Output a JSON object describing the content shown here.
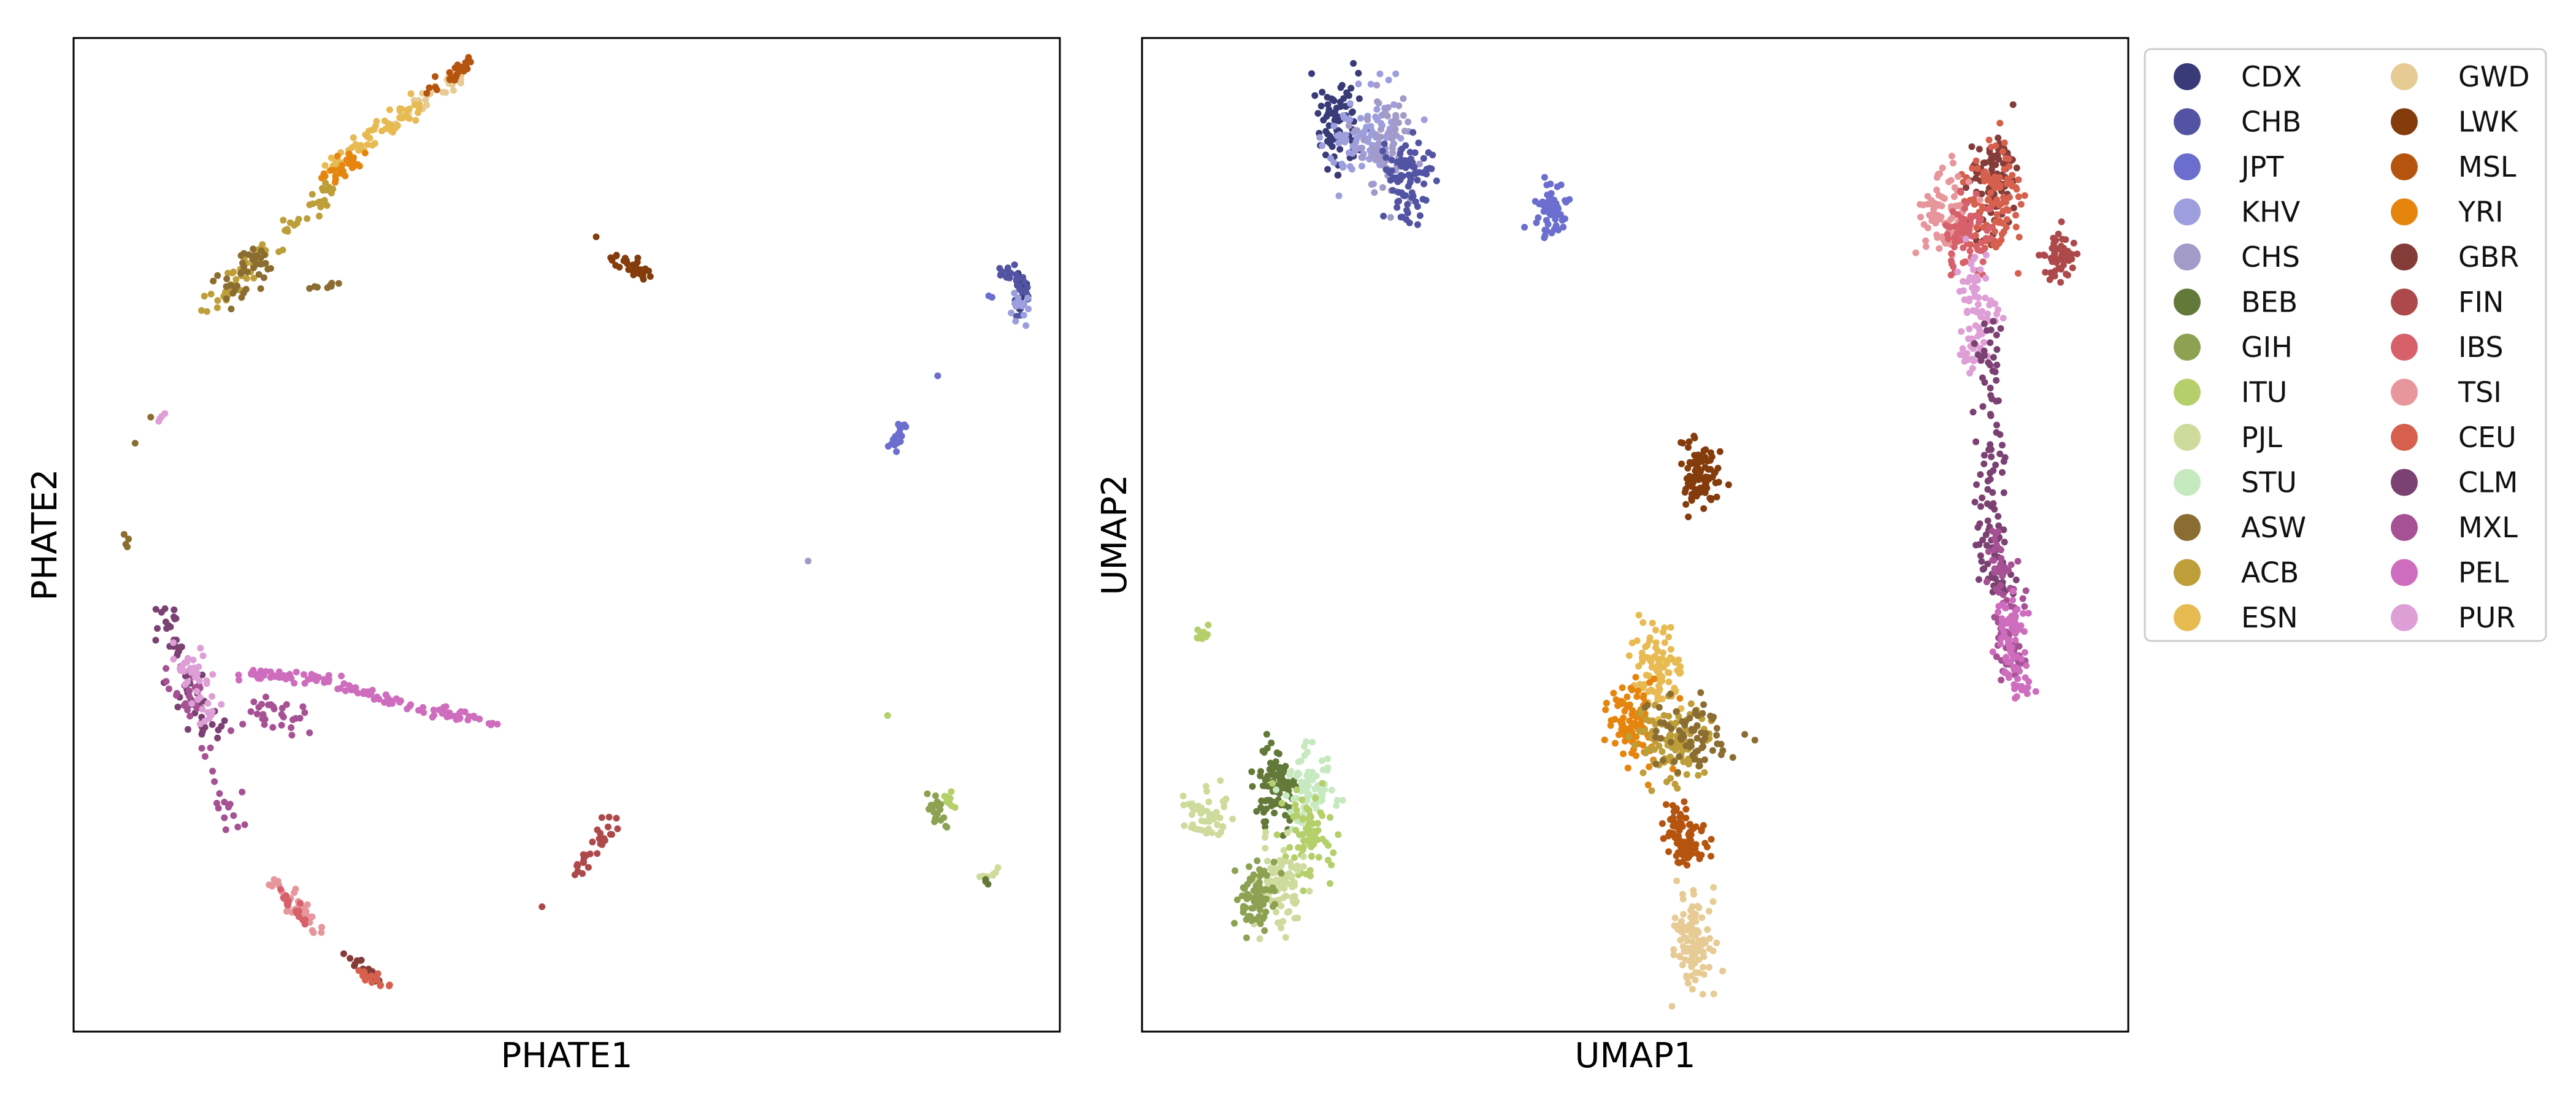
{
  "chart_data": [
    {
      "type": "scatter",
      "xlabel": "PHATE1",
      "ylabel": "PHATE2",
      "xticks": [],
      "yticks": [],
      "xlim": [
        0,
        1
      ],
      "ylim": [
        0,
        1
      ],
      "clusters": [
        {
          "label": "CDX",
          "kind": "curve",
          "x": [
            0.95,
            0.96,
            0.965
          ],
          "y": [
            0.77,
            0.75,
            0.73
          ],
          "spread": 0.004,
          "n": 20
        },
        {
          "label": "CHB",
          "kind": "curve",
          "x": [
            0.94,
            0.955,
            0.962,
            0.958
          ],
          "y": [
            0.76,
            0.765,
            0.745,
            0.72
          ],
          "spread": 0.004,
          "n": 35
        },
        {
          "label": "KHV",
          "kind": "curve",
          "x": [
            0.955,
            0.962,
            0.958
          ],
          "y": [
            0.745,
            0.73,
            0.715
          ],
          "spread": 0.004,
          "n": 15
        },
        {
          "label": "JPT",
          "kind": "curve",
          "x": [
            0.83,
            0.845
          ],
          "y": [
            0.59,
            0.615
          ],
          "spread": 0.003,
          "n": 25
        },
        {
          "label": "JPT",
          "kind": "blob",
          "x": 0.875,
          "y": 0.66,
          "sx": 0.001,
          "sy": 0.001,
          "n": 1
        },
        {
          "label": "JPT",
          "kind": "blob",
          "x": 0.93,
          "y": 0.74,
          "sx": 0.001,
          "sy": 0.001,
          "n": 2
        },
        {
          "label": "CHS",
          "kind": "blob",
          "x": 0.745,
          "y": 0.475,
          "sx": 0.001,
          "sy": 0.001,
          "n": 1
        },
        {
          "label": "ITU",
          "kind": "blob",
          "x": 0.825,
          "y": 0.318,
          "sx": 0.001,
          "sy": 0.001,
          "n": 1
        },
        {
          "label": "GIH",
          "kind": "curve",
          "x": [
            0.868,
            0.885
          ],
          "y": [
            0.235,
            0.21
          ],
          "spread": 0.004,
          "n": 20
        },
        {
          "label": "ITU",
          "kind": "curve",
          "x": [
            0.88,
            0.89
          ],
          "y": [
            0.245,
            0.225
          ],
          "spread": 0.003,
          "n": 10
        },
        {
          "label": "PJL",
          "kind": "curve",
          "x": [
            0.92,
            0.935
          ],
          "y": [
            0.153,
            0.16
          ],
          "spread": 0.003,
          "n": 10
        },
        {
          "label": "BEB",
          "kind": "blob",
          "x": 0.923,
          "y": 0.15,
          "sx": 0.002,
          "sy": 0.002,
          "n": 3
        },
        {
          "label": "LWK",
          "kind": "curve",
          "x": [
            0.545,
            0.57,
            0.58
          ],
          "y": [
            0.78,
            0.77,
            0.76
          ],
          "spread": 0.004,
          "n": 28
        },
        {
          "label": "LWK",
          "kind": "blob",
          "x": 0.53,
          "y": 0.8,
          "sx": 0.001,
          "sy": 0.001,
          "n": 1
        },
        {
          "label": "FIN",
          "kind": "curve",
          "x": [
            0.51,
            0.545
          ],
          "y": [
            0.16,
            0.21
          ],
          "spread": 0.004,
          "n": 30
        },
        {
          "label": "FIN",
          "kind": "blob",
          "x": 0.475,
          "y": 0.128,
          "sx": 0.001,
          "sy": 0.001,
          "n": 1
        },
        {
          "label": "MSL",
          "kind": "curve",
          "x": [
            0.4,
            0.4,
            0.4
          ],
          "y": [
            0.955,
            0.97,
            0.985
          ],
          "spread": 0.001,
          "n": 1
        },
        {
          "label": "GWD",
          "kind": "curve",
          "x": [
            0.33,
            0.37,
            0.39
          ],
          "y": [
            0.92,
            0.95,
            0.96
          ],
          "spread": 0.005,
          "n": 30
        },
        {
          "label": "MSL",
          "kind": "curve",
          "x": [
            0.36,
            0.39,
            0.4
          ],
          "y": [
            0.945,
            0.965,
            0.975
          ],
          "spread": 0.004,
          "n": 25
        },
        {
          "label": "ESN",
          "kind": "curve",
          "x": [
            0.26,
            0.3,
            0.33,
            0.35
          ],
          "y": [
            0.87,
            0.9,
            0.92,
            0.93
          ],
          "spread": 0.006,
          "n": 60
        },
        {
          "label": "YRI",
          "kind": "curve",
          "x": [
            0.255,
            0.275,
            0.29
          ],
          "y": [
            0.855,
            0.87,
            0.885
          ],
          "spread": 0.005,
          "n": 30
        },
        {
          "label": "ACB",
          "kind": "curve",
          "x": [
            0.14,
            0.18,
            0.22,
            0.26
          ],
          "y": [
            0.73,
            0.77,
            0.81,
            0.85
          ],
          "spread": 0.006,
          "n": 70
        },
        {
          "label": "ASW",
          "kind": "curve",
          "x": [
            0.15,
            0.18,
            0.2
          ],
          "y": [
            0.74,
            0.765,
            0.78
          ],
          "spread": 0.008,
          "n": 40
        },
        {
          "label": "ASW",
          "kind": "curve",
          "x": [
            0.24,
            0.27
          ],
          "y": [
            0.75,
            0.755
          ],
          "spread": 0.003,
          "n": 8
        },
        {
          "label": "ASW",
          "kind": "curve",
          "x": [
            0.07,
            0.08,
            0.045,
            0.05,
            0.06
          ],
          "y": [
            0.6,
            0.63,
            0.55,
            0.5,
            0.48
          ],
          "spread": 0.003,
          "n": 6
        },
        {
          "label": "PUR",
          "kind": "curve",
          "x": [
            0.08,
            0.09
          ],
          "y": [
            0.61,
            0.62
          ],
          "spread": 0.003,
          "n": 4
        },
        {
          "label": "CLM",
          "kind": "curve",
          "x": [
            0.09,
            0.11,
            0.12,
            0.14
          ],
          "y": [
            0.43,
            0.37,
            0.33,
            0.29
          ],
          "spread": 0.007,
          "n": 60
        },
        {
          "label": "MXL",
          "kind": "curve",
          "x": [
            0.1,
            0.13,
            0.16
          ],
          "y": [
            0.36,
            0.32,
            0.2
          ],
          "spread": 0.008,
          "n": 40
        },
        {
          "label": "PUR",
          "kind": "curve",
          "x": [
            0.11,
            0.125,
            0.14
          ],
          "y": [
            0.38,
            0.36,
            0.3
          ],
          "spread": 0.008,
          "n": 40
        },
        {
          "label": "PEL",
          "kind": "curve",
          "x": [
            0.17,
            0.25,
            0.35,
            0.43
          ],
          "y": [
            0.36,
            0.355,
            0.325,
            0.31
          ],
          "spread": 0.003,
          "n": 110
        },
        {
          "label": "MXL",
          "kind": "curve",
          "x": [
            0.17,
            0.24
          ],
          "y": [
            0.325,
            0.31
          ],
          "spread": 0.01,
          "n": 30
        },
        {
          "label": "TSI",
          "kind": "curve",
          "x": [
            0.2,
            0.25
          ],
          "y": [
            0.155,
            0.1
          ],
          "spread": 0.005,
          "n": 40
        },
        {
          "label": "IBS",
          "kind": "curve",
          "x": [
            0.21,
            0.245
          ],
          "y": [
            0.14,
            0.095
          ],
          "spread": 0.003,
          "n": 15
        },
        {
          "label": "GBR",
          "kind": "curve",
          "x": [
            0.28,
            0.31
          ],
          "y": [
            0.075,
            0.05
          ],
          "spread": 0.004,
          "n": 20
        },
        {
          "label": "CEU",
          "kind": "curve",
          "x": [
            0.29,
            0.315
          ],
          "y": [
            0.06,
            0.048
          ],
          "spread": 0.004,
          "n": 15
        }
      ]
    },
    {
      "type": "scatter",
      "xlabel": "UMAP1",
      "ylabel": "UMAP2",
      "xticks": [],
      "yticks": [],
      "xlim": [
        0,
        1
      ],
      "ylim": [
        0,
        1
      ],
      "clusters": [
        {
          "label": "CDX",
          "kind": "blob",
          "x": 0.2,
          "y": 0.915,
          "sx": 0.014,
          "sy": 0.02,
          "n": 80
        },
        {
          "label": "KHV",
          "kind": "blob",
          "x": 0.225,
          "y": 0.9,
          "sx": 0.016,
          "sy": 0.022,
          "n": 90
        },
        {
          "label": "CHS",
          "kind": "blob",
          "x": 0.25,
          "y": 0.89,
          "sx": 0.016,
          "sy": 0.025,
          "n": 70
        },
        {
          "label": "CHB",
          "kind": "blob",
          "x": 0.27,
          "y": 0.86,
          "sx": 0.014,
          "sy": 0.022,
          "n": 80
        },
        {
          "label": "JPT",
          "kind": "blob",
          "x": 0.415,
          "y": 0.83,
          "sx": 0.008,
          "sy": 0.012,
          "n": 60
        },
        {
          "label": "LWK",
          "kind": "blob",
          "x": 0.565,
          "y": 0.56,
          "sx": 0.009,
          "sy": 0.017,
          "n": 90
        },
        {
          "label": "ESN",
          "kind": "blob",
          "x": 0.523,
          "y": 0.36,
          "sx": 0.013,
          "sy": 0.025,
          "n": 90
        },
        {
          "label": "YRI",
          "kind": "blob",
          "x": 0.5,
          "y": 0.31,
          "sx": 0.012,
          "sy": 0.02,
          "n": 100
        },
        {
          "label": "ACB",
          "kind": "blob",
          "x": 0.54,
          "y": 0.29,
          "sx": 0.02,
          "sy": 0.02,
          "n": 100
        },
        {
          "label": "ASW",
          "kind": "blob",
          "x": 0.56,
          "y": 0.3,
          "sx": 0.022,
          "sy": 0.018,
          "n": 70
        },
        {
          "label": "MSL",
          "kind": "blob",
          "x": 0.55,
          "y": 0.195,
          "sx": 0.01,
          "sy": 0.016,
          "n": 90
        },
        {
          "label": "GWD",
          "kind": "blob",
          "x": 0.56,
          "y": 0.095,
          "sx": 0.01,
          "sy": 0.025,
          "n": 110
        },
        {
          "label": "ITU",
          "kind": "blob",
          "x": 0.063,
          "y": 0.4,
          "sx": 0.003,
          "sy": 0.004,
          "n": 12
        },
        {
          "label": "PJL",
          "kind": "blob",
          "x": 0.065,
          "y": 0.22,
          "sx": 0.011,
          "sy": 0.012,
          "n": 50
        },
        {
          "label": "BEB",
          "kind": "blob",
          "x": 0.135,
          "y": 0.245,
          "sx": 0.011,
          "sy": 0.018,
          "n": 90
        },
        {
          "label": "STU",
          "kind": "blob",
          "x": 0.17,
          "y": 0.24,
          "sx": 0.012,
          "sy": 0.02,
          "n": 80
        },
        {
          "label": "ITU",
          "kind": "blob",
          "x": 0.165,
          "y": 0.2,
          "sx": 0.012,
          "sy": 0.02,
          "n": 70
        },
        {
          "label": "PJL",
          "kind": "blob",
          "x": 0.14,
          "y": 0.145,
          "sx": 0.012,
          "sy": 0.02,
          "n": 90
        },
        {
          "label": "GIH",
          "kind": "blob",
          "x": 0.115,
          "y": 0.135,
          "sx": 0.01,
          "sy": 0.016,
          "n": 80
        },
        {
          "label": "GBR",
          "kind": "blob",
          "x": 0.86,
          "y": 0.86,
          "sx": 0.012,
          "sy": 0.03,
          "n": 90
        },
        {
          "label": "CEU",
          "kind": "blob",
          "x": 0.865,
          "y": 0.84,
          "sx": 0.014,
          "sy": 0.03,
          "n": 100
        },
        {
          "label": "TSI",
          "kind": "blob",
          "x": 0.815,
          "y": 0.825,
          "sx": 0.013,
          "sy": 0.02,
          "n": 80
        },
        {
          "label": "IBS",
          "kind": "blob",
          "x": 0.835,
          "y": 0.8,
          "sx": 0.013,
          "sy": 0.02,
          "n": 70
        },
        {
          "label": "FIN",
          "kind": "blob",
          "x": 0.93,
          "y": 0.78,
          "sx": 0.008,
          "sy": 0.012,
          "n": 50
        },
        {
          "label": "PUR",
          "kind": "curve",
          "x": [
            0.84,
            0.85,
            0.845
          ],
          "y": [
            0.78,
            0.72,
            0.67
          ],
          "spread": 0.009,
          "n": 80
        },
        {
          "label": "CLM",
          "kind": "curve",
          "x": [
            0.855,
            0.86,
            0.862,
            0.87
          ],
          "y": [
            0.72,
            0.6,
            0.5,
            0.44
          ],
          "spread": 0.008,
          "n": 110
        },
        {
          "label": "MXL",
          "kind": "curve",
          "x": [
            0.87,
            0.875,
            0.88
          ],
          "y": [
            0.5,
            0.42,
            0.36
          ],
          "spread": 0.008,
          "n": 70
        },
        {
          "label": "PEL",
          "kind": "curve",
          "x": [
            0.875,
            0.89
          ],
          "y": [
            0.43,
            0.34
          ],
          "spread": 0.01,
          "n": 80
        }
      ]
    }
  ],
  "legend": {
    "entries": [
      {
        "label": "CDX",
        "color": "#393b79"
      },
      {
        "label": "CHB",
        "color": "#5254a3"
      },
      {
        "label": "JPT",
        "color": "#6b6ecf"
      },
      {
        "label": "KHV",
        "color": "#9c9ede"
      },
      {
        "label": "CHS",
        "color": "#a29ac8"
      },
      {
        "label": "BEB",
        "color": "#637939"
      },
      {
        "label": "GIH",
        "color": "#8ca252"
      },
      {
        "label": "ITU",
        "color": "#b5cf6b"
      },
      {
        "label": "PJL",
        "color": "#cedb9c"
      },
      {
        "label": "STU",
        "color": "#c7e9c0"
      },
      {
        "label": "ASW",
        "color": "#8c6d31"
      },
      {
        "label": "ACB",
        "color": "#bd9e39"
      },
      {
        "label": "ESN",
        "color": "#e7ba52"
      },
      {
        "label": "GWD",
        "color": "#e7cb94"
      },
      {
        "label": "LWK",
        "color": "#843c0c"
      },
      {
        "label": "MSL",
        "color": "#b5540f"
      },
      {
        "label": "YRI",
        "color": "#e6850e"
      },
      {
        "label": "GBR",
        "color": "#843c39"
      },
      {
        "label": "FIN",
        "color": "#ad494a"
      },
      {
        "label": "IBS",
        "color": "#d6616b"
      },
      {
        "label": "TSI",
        "color": "#e7969c"
      },
      {
        "label": "CEU",
        "color": "#d6604d"
      },
      {
        "label": "CLM",
        "color": "#7b4173"
      },
      {
        "label": "MXL",
        "color": "#a55194"
      },
      {
        "label": "PEL",
        "color": "#ce6dbd"
      },
      {
        "label": "PUR",
        "color": "#de9ed6"
      }
    ],
    "columns": 2,
    "placement": "upper-right-outside"
  }
}
